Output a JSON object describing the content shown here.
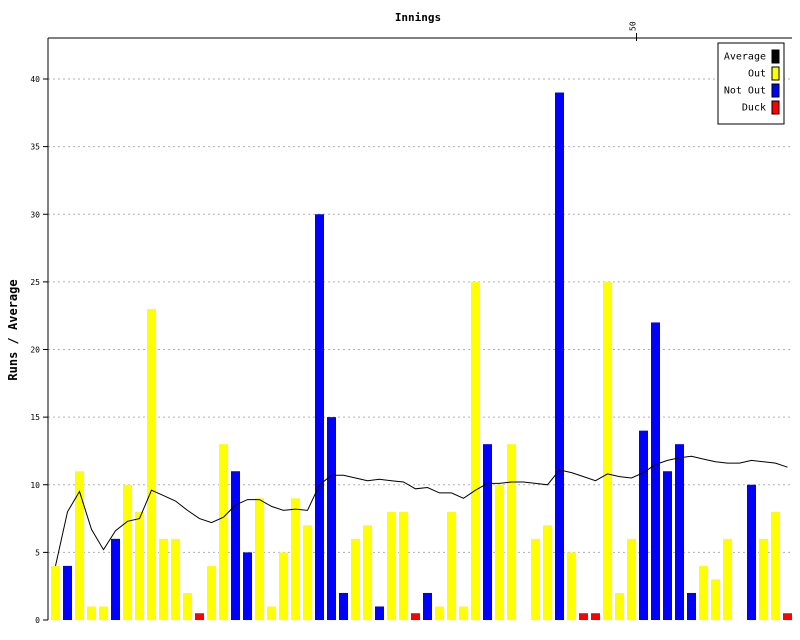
{
  "chart_data": {
    "type": "bar",
    "title": "Innings",
    "ylabel": "Runs / Average",
    "xlabel": "",
    "ylim": [
      0,
      43
    ],
    "yticks": [
      0,
      5,
      10,
      15,
      20,
      25,
      30,
      35,
      40
    ],
    "top_axis_ticks": [
      {
        "innings": 50,
        "label": "50"
      }
    ],
    "grid": "horizontal dotted",
    "legend_position": "top-right",
    "legend": [
      {
        "label": "Average",
        "color": "#000000"
      },
      {
        "label": "Out",
        "color": "#ffff00"
      },
      {
        "label": "Not Out",
        "color": "#0000ff"
      },
      {
        "label": "Duck",
        "color": "#ff0000"
      }
    ],
    "innings": [
      {
        "runs": 4,
        "status": "out"
      },
      {
        "runs": 4,
        "status": "not_out"
      },
      {
        "runs": 11,
        "status": "out"
      },
      {
        "runs": 1,
        "status": "out"
      },
      {
        "runs": 1,
        "status": "out"
      },
      {
        "runs": 6,
        "status": "not_out"
      },
      {
        "runs": 10,
        "status": "out"
      },
      {
        "runs": 8,
        "status": "out"
      },
      {
        "runs": 23,
        "status": "out"
      },
      {
        "runs": 6,
        "status": "out"
      },
      {
        "runs": 6,
        "status": "out"
      },
      {
        "runs": 2,
        "status": "out"
      },
      {
        "runs": 0,
        "status": "duck"
      },
      {
        "runs": 4,
        "status": "out"
      },
      {
        "runs": 13,
        "status": "out"
      },
      {
        "runs": 11,
        "status": "not_out"
      },
      {
        "runs": 5,
        "status": "not_out"
      },
      {
        "runs": 9,
        "status": "out"
      },
      {
        "runs": 1,
        "status": "out"
      },
      {
        "runs": 5,
        "status": "out"
      },
      {
        "runs": 9,
        "status": "out"
      },
      {
        "runs": 7,
        "status": "out"
      },
      {
        "runs": 30,
        "status": "not_out"
      },
      {
        "runs": 15,
        "status": "not_out"
      },
      {
        "runs": 2,
        "status": "not_out"
      },
      {
        "runs": 6,
        "status": "out"
      },
      {
        "runs": 7,
        "status": "out"
      },
      {
        "runs": 1,
        "status": "not_out"
      },
      {
        "runs": 8,
        "status": "out"
      },
      {
        "runs": 8,
        "status": "out"
      },
      {
        "runs": 0,
        "status": "duck"
      },
      {
        "runs": 2,
        "status": "not_out"
      },
      {
        "runs": 1,
        "status": "out"
      },
      {
        "runs": 8,
        "status": "out"
      },
      {
        "runs": 1,
        "status": "out"
      },
      {
        "runs": 25,
        "status": "out"
      },
      {
        "runs": 13,
        "status": "not_out"
      },
      {
        "runs": 10,
        "status": "out"
      },
      {
        "runs": 13,
        "status": "out"
      },
      {
        "runs": 0,
        "status": "none"
      },
      {
        "runs": 6,
        "status": "out"
      },
      {
        "runs": 7,
        "status": "out"
      },
      {
        "runs": 39,
        "status": "not_out"
      },
      {
        "runs": 5,
        "status": "out"
      },
      {
        "runs": 0,
        "status": "duck"
      },
      {
        "runs": 0,
        "status": "duck"
      },
      {
        "runs": 25,
        "status": "out"
      },
      {
        "runs": 2,
        "status": "out"
      },
      {
        "runs": 6,
        "status": "out"
      },
      {
        "runs": 14,
        "status": "not_out"
      },
      {
        "runs": 22,
        "status": "not_out"
      },
      {
        "runs": 11,
        "status": "not_out"
      },
      {
        "runs": 13,
        "status": "not_out"
      },
      {
        "runs": 2,
        "status": "not_out"
      },
      {
        "runs": 4,
        "status": "out"
      },
      {
        "runs": 3,
        "status": "out"
      },
      {
        "runs": 6,
        "status": "out"
      },
      {
        "runs": 0,
        "status": "none"
      },
      {
        "runs": 10,
        "status": "not_out"
      },
      {
        "runs": 6,
        "status": "out"
      },
      {
        "runs": 8,
        "status": "out"
      },
      {
        "runs": 0,
        "status": "duck"
      }
    ],
    "average": [
      4,
      8,
      9.5,
      6.7,
      5.2,
      6.6,
      7.3,
      7.5,
      9.6,
      9.2,
      8.8,
      8.1,
      7.5,
      7.2,
      7.6,
      8.5,
      8.9,
      8.9,
      8.4,
      8.1,
      8.2,
      8.1,
      10.0,
      10.7,
      10.7,
      10.5,
      10.3,
      10.4,
      10.3,
      10.2,
      9.7,
      9.8,
      9.4,
      9.4,
      9.0,
      9.6,
      10.1,
      10.1,
      10.2,
      10.2,
      10.1,
      10.0,
      11.1,
      10.9,
      10.6,
      10.3,
      10.8,
      10.6,
      10.5,
      10.9,
      11.5,
      11.8,
      12.0,
      12.1,
      11.9,
      11.7,
      11.6,
      11.6,
      11.8,
      11.7,
      11.6,
      11.3
    ]
  }
}
